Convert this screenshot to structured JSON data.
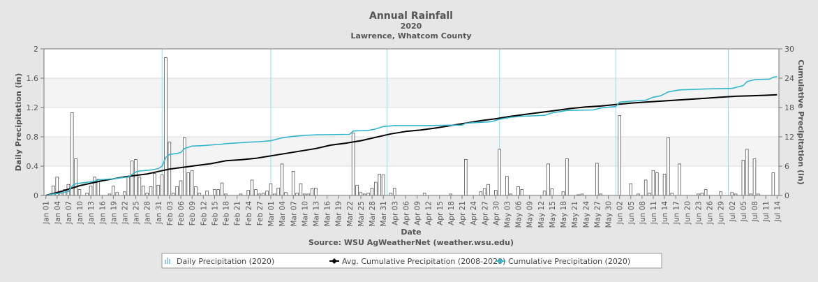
{
  "chart_data": {
    "type": "bar",
    "title": "Annual Rainfall",
    "subtitle_year": "2020",
    "subtitle_location": "Lawrence, Whatcom County",
    "xlabel": "Date",
    "ylabel": "Daily Precipitation (in)",
    "y2label": "Cumulative Precipitation (in)",
    "source": "Source:  WSU AgWeatherNet (weather.wsu.edu)",
    "ylim": [
      0,
      2
    ],
    "y2lim": [
      0,
      30
    ],
    "yticks": [
      "0",
      "0.4",
      "0.8",
      "1.2",
      "1.6",
      "2"
    ],
    "y2ticks": [
      "0",
      "6",
      "12",
      "18",
      "24",
      "30"
    ],
    "x_ticks": [
      "Jan 01",
      "Jan 04",
      "Jan 07",
      "Jan 10",
      "Jan 13",
      "Jan 16",
      "Jan 19",
      "Jan 22",
      "Jan 25",
      "Jan 28",
      "Jan 31",
      "Feb 03",
      "Feb 06",
      "Feb 09",
      "Feb 12",
      "Feb 15",
      "Feb 18",
      "Feb 21",
      "Feb 24",
      "Feb 27",
      "Mar 01",
      "Mar 04",
      "Mar 07",
      "Mar 10",
      "Mar 13",
      "Mar 16",
      "Mar 19",
      "Mar 22",
      "Mar 25",
      "Mar 28",
      "Mar 31",
      "Apr 03",
      "Apr 06",
      "Apr 09",
      "Apr 12",
      "Apr 15",
      "Apr 18",
      "Apr 21",
      "Apr 24",
      "Apr 27",
      "Apr 30",
      "May 03",
      "May 06",
      "May 09",
      "May 12",
      "May 15",
      "May 18",
      "May 21",
      "May 24",
      "May 27",
      "May 30",
      "Jun 02",
      "Jun 05",
      "Jun 08",
      "Jun 11",
      "Jun 14",
      "Jun 17",
      "Jun 20",
      "Jun 23",
      "Jun 26",
      "Jun 29",
      "Jul 02",
      "Jul 05",
      "Jul 08",
      "Jul 11",
      "Jul 14"
    ],
    "month_lines_day_index": [
      31,
      60,
      91,
      121,
      152,
      182
    ],
    "days_count": 196,
    "daily_precipitation": [
      {
        "day": 2,
        "value": 0.13
      },
      {
        "day": 3,
        "value": 0.25
      },
      {
        "day": 4,
        "value": 0.03
      },
      {
        "day": 5,
        "value": 0.08
      },
      {
        "day": 6,
        "value": 0.15
      },
      {
        "day": 7,
        "value": 1.13
      },
      {
        "day": 8,
        "value": 0.5
      },
      {
        "day": 9,
        "value": 0.08
      },
      {
        "day": 11,
        "value": 0.03
      },
      {
        "day": 12,
        "value": 0.13
      },
      {
        "day": 13,
        "value": 0.25
      },
      {
        "day": 14,
        "value": 0.22
      },
      {
        "day": 17,
        "value": 0.02
      },
      {
        "day": 18,
        "value": 0.13
      },
      {
        "day": 19,
        "value": 0.04
      },
      {
        "day": 21,
        "value": 0.05
      },
      {
        "day": 22,
        "value": 0.25
      },
      {
        "day": 23,
        "value": 0.47
      },
      {
        "day": 24,
        "value": 0.49
      },
      {
        "day": 25,
        "value": 0.25
      },
      {
        "day": 26,
        "value": 0.13
      },
      {
        "day": 27,
        "value": 0.03
      },
      {
        "day": 28,
        "value": 0.12
      },
      {
        "day": 29,
        "value": 0.3
      },
      {
        "day": 30,
        "value": 0.14
      },
      {
        "day": 31,
        "value": 0.28
      },
      {
        "day": 32,
        "value": 1.88
      },
      {
        "day": 33,
        "value": 0.73
      },
      {
        "day": 34,
        "value": 0.03
      },
      {
        "day": 35,
        "value": 0.12
      },
      {
        "day": 36,
        "value": 0.2
      },
      {
        "day": 37,
        "value": 0.79
      },
      {
        "day": 38,
        "value": 0.31
      },
      {
        "day": 39,
        "value": 0.34
      },
      {
        "day": 40,
        "value": 0.12
      },
      {
        "day": 41,
        "value": 0.03
      },
      {
        "day": 43,
        "value": 0.06
      },
      {
        "day": 45,
        "value": 0.08
      },
      {
        "day": 46,
        "value": 0.08
      },
      {
        "day": 47,
        "value": 0.17
      },
      {
        "day": 48,
        "value": 0.02
      },
      {
        "day": 52,
        "value": 0.02
      },
      {
        "day": 54,
        "value": 0.07
      },
      {
        "day": 55,
        "value": 0.21
      },
      {
        "day": 56,
        "value": 0.08
      },
      {
        "day": 57,
        "value": 0.02
      },
      {
        "day": 58,
        "value": 0.03
      },
      {
        "day": 59,
        "value": 0.06
      },
      {
        "day": 60,
        "value": 0.16
      },
      {
        "day": 61,
        "value": 0.02
      },
      {
        "day": 62,
        "value": 0.1
      },
      {
        "day": 63,
        "value": 0.43
      },
      {
        "day": 64,
        "value": 0.04
      },
      {
        "day": 66,
        "value": 0.33
      },
      {
        "day": 67,
        "value": 0.03
      },
      {
        "day": 68,
        "value": 0.16
      },
      {
        "day": 69,
        "value": 0.02
      },
      {
        "day": 70,
        "value": 0.02
      },
      {
        "day": 71,
        "value": 0.09
      },
      {
        "day": 72,
        "value": 0.1
      },
      {
        "day": 82,
        "value": 0.85
      },
      {
        "day": 83,
        "value": 0.14
      },
      {
        "day": 84,
        "value": 0.04
      },
      {
        "day": 85,
        "value": 0.02
      },
      {
        "day": 86,
        "value": 0.03
      },
      {
        "day": 87,
        "value": 0.1
      },
      {
        "day": 88,
        "value": 0.18
      },
      {
        "day": 89,
        "value": 0.29
      },
      {
        "day": 90,
        "value": 0.28
      },
      {
        "day": 92,
        "value": 0.03
      },
      {
        "day": 93,
        "value": 0.1
      },
      {
        "day": 101,
        "value": 0.03
      },
      {
        "day": 108,
        "value": 0.02
      },
      {
        "day": 112,
        "value": 0.49
      },
      {
        "day": 116,
        "value": 0.05
      },
      {
        "day": 117,
        "value": 0.09
      },
      {
        "day": 118,
        "value": 0.15
      },
      {
        "day": 120,
        "value": 0.07
      },
      {
        "day": 121,
        "value": 0.63
      },
      {
        "day": 123,
        "value": 0.26
      },
      {
        "day": 124,
        "value": 0.02
      },
      {
        "day": 126,
        "value": 0.12
      },
      {
        "day": 127,
        "value": 0.08
      },
      {
        "day": 133,
        "value": 0.06
      },
      {
        "day": 134,
        "value": 0.43
      },
      {
        "day": 135,
        "value": 0.09
      },
      {
        "day": 138,
        "value": 0.05
      },
      {
        "day": 139,
        "value": 0.5
      },
      {
        "day": 142,
        "value": 0.01
      },
      {
        "day": 143,
        "value": 0.02
      },
      {
        "day": 147,
        "value": 0.44
      },
      {
        "day": 148,
        "value": 0.02
      },
      {
        "day": 153,
        "value": 1.09
      },
      {
        "day": 156,
        "value": 0.16
      },
      {
        "day": 158,
        "value": 0.02
      },
      {
        "day": 160,
        "value": 0.21
      },
      {
        "day": 161,
        "value": 0.03
      },
      {
        "day": 162,
        "value": 0.34
      },
      {
        "day": 163,
        "value": 0.31
      },
      {
        "day": 165,
        "value": 0.29
      },
      {
        "day": 166,
        "value": 0.79
      },
      {
        "day": 167,
        "value": 0.03
      },
      {
        "day": 169,
        "value": 0.43
      },
      {
        "day": 174,
        "value": 0.02
      },
      {
        "day": 175,
        "value": 0.03
      },
      {
        "day": 176,
        "value": 0.08
      },
      {
        "day": 180,
        "value": 0.05
      },
      {
        "day": 183,
        "value": 0.04
      },
      {
        "day": 184,
        "value": 0.02
      },
      {
        "day": 186,
        "value": 0.48
      },
      {
        "day": 187,
        "value": 0.63
      },
      {
        "day": 188,
        "value": 0.02
      },
      {
        "day": 189,
        "value": 0.5
      },
      {
        "day": 190,
        "value": 0.02
      },
      {
        "day": 194,
        "value": 0.31
      }
    ],
    "series": [
      {
        "name": "Avg. Cumulative Precipitation (2008-2020)",
        "color": "#000000",
        "points": [
          [
            0,
            0
          ],
          [
            2,
            0.4
          ],
          [
            4,
            0.8
          ],
          [
            7,
            1.5
          ],
          [
            9,
            2
          ],
          [
            12,
            2.5
          ],
          [
            15,
            3
          ],
          [
            18,
            3.4
          ],
          [
            21,
            3.8
          ],
          [
            24,
            4.1
          ],
          [
            27,
            4.4
          ],
          [
            30,
            4.9
          ],
          [
            33,
            5.4
          ],
          [
            36,
            5.7
          ],
          [
            40,
            6.1
          ],
          [
            44,
            6.5
          ],
          [
            48,
            7.1
          ],
          [
            52,
            7.3
          ],
          [
            56,
            7.6
          ],
          [
            60,
            8.1
          ],
          [
            64,
            8.6
          ],
          [
            68,
            9.1
          ],
          [
            72,
            9.6
          ],
          [
            76,
            10.3
          ],
          [
            80,
            10.7
          ],
          [
            84,
            11.2
          ],
          [
            88,
            11.9
          ],
          [
            92,
            12.6
          ],
          [
            96,
            13.1
          ],
          [
            100,
            13.4
          ],
          [
            104,
            13.8
          ],
          [
            108,
            14.3
          ],
          [
            112,
            14.8
          ],
          [
            116,
            15.3
          ],
          [
            120,
            15.7
          ],
          [
            124,
            16.2
          ],
          [
            128,
            16.6
          ],
          [
            132,
            17
          ],
          [
            136,
            17.4
          ],
          [
            140,
            17.8
          ],
          [
            144,
            18.1
          ],
          [
            148,
            18.3
          ],
          [
            152,
            18.6
          ],
          [
            156,
            18.9
          ],
          [
            160,
            19.1
          ],
          [
            164,
            19.3
          ],
          [
            168,
            19.5
          ],
          [
            172,
            19.7
          ],
          [
            176,
            19.9
          ],
          [
            180,
            20.1
          ],
          [
            184,
            20.3
          ],
          [
            188,
            20.4
          ],
          [
            192,
            20.5
          ],
          [
            195,
            20.6
          ]
        ]
      },
      {
        "name": "Cumulative Precipitation (2020)",
        "color": "#33b5cc",
        "points": [
          [
            0,
            0
          ],
          [
            2,
            0.3
          ],
          [
            4,
            0.5
          ],
          [
            6,
            0.8
          ],
          [
            7,
            1.9
          ],
          [
            8,
            2.4
          ],
          [
            10,
            2.6
          ],
          [
            13,
            2.9
          ],
          [
            14,
            3.2
          ],
          [
            18,
            3.4
          ],
          [
            22,
            3.8
          ],
          [
            23,
            4.3
          ],
          [
            24,
            4.8
          ],
          [
            25,
            5
          ],
          [
            28,
            5.2
          ],
          [
            30,
            5.5
          ],
          [
            31,
            6
          ],
          [
            32,
            7.8
          ],
          [
            33,
            8.4
          ],
          [
            35,
            8.6
          ],
          [
            36,
            8.8
          ],
          [
            37,
            9.6
          ],
          [
            39,
            10.1
          ],
          [
            42,
            10.2
          ],
          [
            47,
            10.5
          ],
          [
            48,
            10.6
          ],
          [
            54,
            10.9
          ],
          [
            57,
            11
          ],
          [
            60,
            11.2
          ],
          [
            62,
            11.6
          ],
          [
            63,
            11.8
          ],
          [
            66,
            12.1
          ],
          [
            69,
            12.3
          ],
          [
            72,
            12.4
          ],
          [
            81,
            12.5
          ],
          [
            82,
            13.2
          ],
          [
            86,
            13.3
          ],
          [
            88,
            13.6
          ],
          [
            90,
            14.1
          ],
          [
            93,
            14.3
          ],
          [
            101,
            14.3
          ],
          [
            111,
            14.4
          ],
          [
            112,
            14.8
          ],
          [
            119,
            15.1
          ],
          [
            121,
            15.6
          ],
          [
            124,
            16
          ],
          [
            127,
            16.2
          ],
          [
            133,
            16.4
          ],
          [
            135,
            16.9
          ],
          [
            139,
            17.4
          ],
          [
            146,
            17.5
          ],
          [
            148,
            17.9
          ],
          [
            152,
            18.2
          ],
          [
            153,
            19.1
          ],
          [
            156,
            19.3
          ],
          [
            160,
            19.5
          ],
          [
            162,
            20.1
          ],
          [
            164,
            20.4
          ],
          [
            166,
            21.2
          ],
          [
            169,
            21.6
          ],
          [
            176,
            21.8
          ],
          [
            183,
            21.9
          ],
          [
            186,
            22.5
          ],
          [
            187,
            23.3
          ],
          [
            189,
            23.7
          ],
          [
            193,
            23.8
          ],
          [
            194,
            24.2
          ],
          [
            195,
            24.3
          ]
        ]
      }
    ],
    "legend": [
      {
        "label": "Daily Precipitation (2020)",
        "type": "bar"
      },
      {
        "label": "Avg. Cumulative Precipitation (2008-2020)",
        "type": "line",
        "color": "#000000"
      },
      {
        "label": "Cumulative Precipitation (2020)",
        "type": "line",
        "color": "#33b5cc"
      }
    ],
    "legend_position": "bottom-center"
  }
}
